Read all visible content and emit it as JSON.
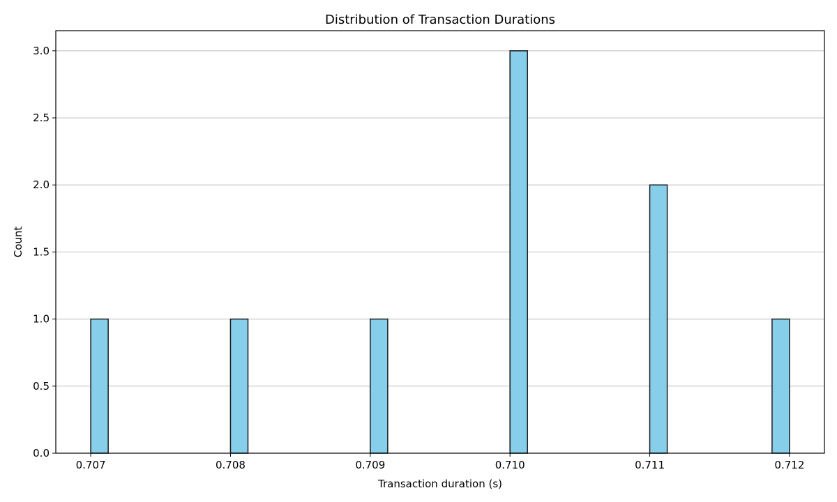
{
  "chart_data": {
    "type": "bar",
    "title": "Distribution of Transaction Durations",
    "xlabel": "Transaction duration (s)",
    "ylabel": "Count",
    "xlim": [
      0.70675,
      0.71225
    ],
    "ylim": [
      0,
      3.15
    ],
    "xticks": [
      "0.707",
      "0.708",
      "0.709",
      "0.710",
      "0.711",
      "0.712"
    ],
    "yticks": [
      "0.0",
      "0.5",
      "1.0",
      "1.5",
      "2.0",
      "2.5",
      "3.0"
    ],
    "bin_width": 0.000125,
    "bins": [
      {
        "start": 0.707,
        "count": 1
      },
      {
        "start": 0.708,
        "count": 1
      },
      {
        "start": 0.709,
        "count": 1
      },
      {
        "start": 0.71,
        "count": 3
      },
      {
        "start": 0.711,
        "count": 2
      },
      {
        "start": 0.711875,
        "count": 1
      }
    ],
    "grid": "y",
    "bar_color": "#87ceeb",
    "bar_edge_color": "#1a1a1a"
  }
}
